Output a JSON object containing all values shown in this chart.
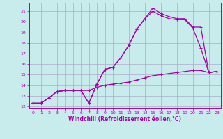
{
  "title": "",
  "xlabel": "Windchill (Refroidissement éolien,°C)",
  "ylabel": "",
  "bg_color": "#c8ecec",
  "grid_color": "#aaaacc",
  "line_color": "#aa00aa",
  "xlim": [
    -0.5,
    23.5
  ],
  "ylim": [
    11.8,
    21.8
  ],
  "xticks": [
    0,
    1,
    2,
    3,
    4,
    5,
    6,
    7,
    8,
    9,
    10,
    11,
    12,
    13,
    14,
    15,
    16,
    17,
    18,
    19,
    20,
    21,
    22,
    23
  ],
  "yticks": [
    12,
    13,
    14,
    15,
    16,
    17,
    18,
    19,
    20,
    21
  ],
  "line1_x": [
    0,
    1,
    2,
    3,
    4,
    5,
    6,
    7,
    8,
    9,
    10,
    11,
    12,
    13,
    14,
    15,
    16,
    17,
    18,
    19,
    20,
    21,
    22,
    23
  ],
  "line1_y": [
    12.3,
    12.3,
    12.8,
    13.4,
    13.5,
    13.5,
    13.5,
    12.3,
    14.1,
    15.5,
    15.7,
    16.6,
    17.8,
    19.3,
    20.3,
    21.0,
    20.6,
    20.3,
    20.2,
    20.2,
    19.4,
    17.5,
    15.2,
    15.3
  ],
  "line2_x": [
    0,
    1,
    2,
    3,
    4,
    5,
    6,
    7,
    8,
    9,
    10,
    11,
    12,
    13,
    14,
    15,
    16,
    17,
    18,
    19,
    20,
    21,
    22,
    23
  ],
  "line2_y": [
    12.3,
    12.3,
    12.8,
    13.4,
    13.5,
    13.5,
    13.5,
    12.3,
    14.1,
    15.5,
    15.7,
    16.6,
    17.8,
    19.3,
    20.3,
    21.3,
    20.8,
    20.5,
    20.3,
    20.3,
    19.5,
    19.5,
    15.2,
    15.3
  ],
  "line3_x": [
    0,
    1,
    2,
    3,
    4,
    5,
    6,
    7,
    8,
    9,
    10,
    11,
    12,
    13,
    14,
    15,
    16,
    17,
    18,
    19,
    20,
    21,
    22,
    23
  ],
  "line3_y": [
    12.3,
    12.3,
    12.8,
    13.4,
    13.5,
    13.5,
    13.5,
    13.5,
    13.8,
    14.0,
    14.1,
    14.2,
    14.3,
    14.5,
    14.7,
    14.9,
    15.0,
    15.1,
    15.2,
    15.3,
    15.4,
    15.4,
    15.2,
    15.3
  ]
}
